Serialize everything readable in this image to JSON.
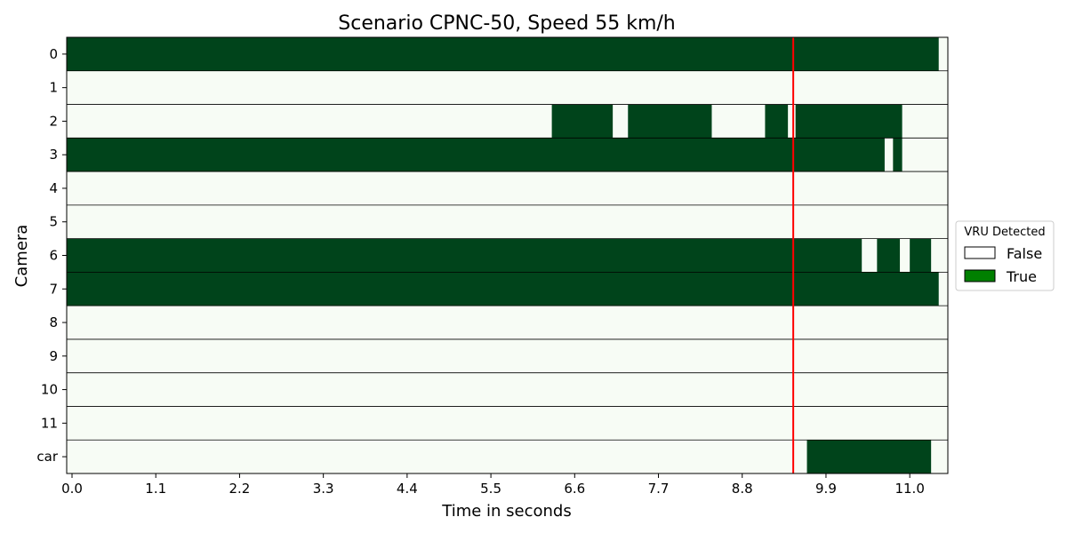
{
  "chart_data": {
    "type": "heatmap",
    "title": "Scenario CPNC-50, Speed 55 km/h",
    "xlabel": "Time in seconds",
    "ylabel": "Camera",
    "xlim": [
      -0.07,
      11.5
    ],
    "x_ticks": [
      "0.0",
      "1.1",
      "2.2",
      "3.3",
      "4.4",
      "5.5",
      "6.6",
      "7.7",
      "8.8",
      "9.9",
      "11.0"
    ],
    "x_tick_values": [
      0.0,
      1.1,
      2.2,
      3.3,
      4.4,
      5.5,
      6.6,
      7.7,
      8.8,
      9.9,
      11.0
    ],
    "rows": [
      "0",
      "1",
      "2",
      "3",
      "4",
      "5",
      "6",
      "7",
      "8",
      "9",
      "10",
      "11",
      "car"
    ],
    "true_intervals": [
      [
        [
          -0.07,
          11.38
        ]
      ],
      [],
      [
        [
          6.3,
          7.1
        ],
        [
          7.3,
          8.4
        ],
        [
          9.1,
          9.4
        ],
        [
          9.5,
          10.9
        ]
      ],
      [
        [
          -0.07,
          10.67
        ],
        [
          10.78,
          10.9
        ]
      ],
      [],
      [],
      [
        [
          -0.07,
          10.37
        ],
        [
          10.57,
          10.87
        ],
        [
          11.0,
          11.28
        ]
      ],
      [
        [
          -0.07,
          11.38
        ]
      ],
      [],
      [],
      [],
      [],
      [
        [
          9.65,
          11.28
        ]
      ]
    ],
    "vertical_line_x": 9.47,
    "legend": {
      "title": "VRU Detected",
      "position": "right",
      "entries": [
        {
          "label": "False",
          "color": "#ffffff"
        },
        {
          "label": "True",
          "color": "#008000"
        }
      ]
    },
    "colors": {
      "false_cell": "#f7fcf5",
      "true_cell": "#00441b",
      "row_divider": "#000000",
      "marker_line": "#ff0000"
    }
  }
}
